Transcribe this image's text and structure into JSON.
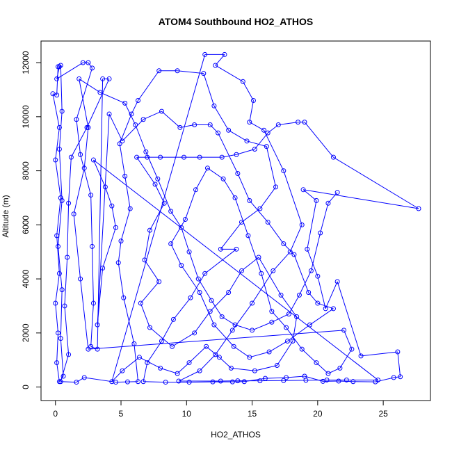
{
  "chart_data": {
    "type": "scatter",
    "title": "ATOM4 Southbound HO2_ATHOS",
    "xlabel": "HO2_ATHOS",
    "ylabel": "Altitude (m)",
    "xlim": [
      -1.1,
      28.6
    ],
    "ylim": [
      -500,
      12800
    ],
    "x_ticks": [
      0,
      5,
      10,
      15,
      20,
      25
    ],
    "y_ticks": [
      0,
      2000,
      4000,
      6000,
      8000,
      10000,
      12000
    ],
    "color": "#0000ff",
    "marker": "open-circle",
    "connected": true,
    "grid": false,
    "series": [
      {
        "points": [
          [
            0.2,
            11850
          ],
          [
            0.1,
            10800
          ],
          [
            -0.2,
            10850
          ],
          [
            0.3,
            9600
          ],
          [
            0.0,
            8400
          ],
          [
            0.4,
            7000
          ],
          [
            0.1,
            5600
          ],
          [
            0.3,
            4200
          ],
          [
            0.0,
            3100
          ],
          [
            0.2,
            2000
          ],
          [
            0.1,
            900
          ],
          [
            0.3,
            200
          ],
          [
            0.6,
            400
          ],
          [
            0.4,
            1800
          ],
          [
            0.5,
            3600
          ],
          [
            0.2,
            5200
          ],
          [
            0.5,
            6900
          ],
          [
            0.3,
            8800
          ],
          [
            0.5,
            10200
          ],
          [
            0.4,
            11900
          ],
          [
            0.3,
            11850
          ],
          [
            0.1,
            11400
          ],
          [
            2.1,
            12000
          ],
          [
            2.5,
            12000
          ],
          [
            2.8,
            11800
          ],
          [
            1.6,
            9900
          ],
          [
            1.9,
            8600
          ],
          [
            2.7,
            7100
          ],
          [
            2.8,
            5200
          ],
          [
            2.9,
            3100
          ],
          [
            2.7,
            1500
          ],
          [
            3.2,
            1400
          ],
          [
            3.6,
            11400
          ],
          [
            4.1,
            11400
          ],
          [
            2.4,
            9600
          ],
          [
            1.2,
            8500
          ],
          [
            1.0,
            6800
          ],
          [
            0.9,
            4800
          ],
          [
            0.7,
            3000
          ],
          [
            1.0,
            1200
          ],
          [
            0.4,
            200
          ],
          [
            1.6,
            180
          ],
          [
            2.2,
            350
          ],
          [
            4.6,
            180
          ],
          [
            5.5,
            190
          ],
          [
            6.3,
            200
          ],
          [
            6.0,
            1600
          ],
          [
            5.2,
            3300
          ],
          [
            4.8,
            4600
          ],
          [
            5.0,
            5400
          ],
          [
            5.7,
            6600
          ],
          [
            5.3,
            7800
          ],
          [
            4.9,
            9000
          ],
          [
            5.8,
            10100
          ],
          [
            6.3,
            10600
          ],
          [
            7.9,
            11700
          ],
          [
            9.3,
            11700
          ],
          [
            11.3,
            11600
          ],
          [
            12.1,
            10400
          ],
          [
            13.2,
            9500
          ],
          [
            14.6,
            9100
          ],
          [
            16.1,
            8900
          ],
          [
            16.8,
            7400
          ],
          [
            15.6,
            6600
          ],
          [
            14.2,
            6100
          ],
          [
            12.6,
            5100
          ],
          [
            13.8,
            5100
          ],
          [
            11.4,
            4200
          ],
          [
            10.3,
            3300
          ],
          [
            9.0,
            2500
          ],
          [
            8.1,
            1700
          ],
          [
            7.0,
            900
          ],
          [
            6.7,
            200
          ],
          [
            8.4,
            180
          ],
          [
            10.2,
            180
          ],
          [
            12.0,
            190
          ],
          [
            13.5,
            190
          ],
          [
            14.4,
            200
          ],
          [
            16.0,
            320
          ],
          [
            17.6,
            350
          ],
          [
            19.0,
            400
          ],
          [
            20.4,
            210
          ],
          [
            21.6,
            220
          ],
          [
            22.7,
            200
          ],
          [
            24.4,
            190
          ],
          [
            25.8,
            350
          ],
          [
            26.3,
            380
          ],
          [
            26.1,
            1300
          ],
          [
            23.3,
            1150
          ],
          [
            21.5,
            3900
          ],
          [
            20.6,
            2900
          ],
          [
            20.0,
            4100
          ],
          [
            19.2,
            5100
          ],
          [
            19.9,
            6900
          ],
          [
            18.9,
            7300
          ],
          [
            27.7,
            6600
          ],
          [
            21.2,
            8500
          ],
          [
            19.0,
            9800
          ],
          [
            18.5,
            9800
          ],
          [
            17.0,
            9700
          ],
          [
            16.2,
            9400
          ],
          [
            15.2,
            8800
          ],
          [
            13.8,
            8600
          ],
          [
            12.7,
            8500
          ],
          [
            11.0,
            8500
          ],
          [
            9.8,
            8500
          ],
          [
            8.0,
            8500
          ],
          [
            7.0,
            8500
          ],
          [
            6.2,
            8500
          ],
          [
            7.6,
            7500
          ],
          [
            8.3,
            6800
          ],
          [
            7.2,
            5800
          ],
          [
            6.8,
            4700
          ],
          [
            7.9,
            3900
          ],
          [
            6.5,
            3100
          ],
          [
            7.2,
            2200
          ],
          [
            8.9,
            1500
          ],
          [
            10.6,
            2000
          ],
          [
            11.8,
            2800
          ],
          [
            13.2,
            3500
          ],
          [
            14.2,
            4300
          ],
          [
            15.5,
            4800
          ],
          [
            17.2,
            3400
          ],
          [
            18.4,
            2600
          ],
          [
            18.1,
            1700
          ],
          [
            16.9,
            800
          ],
          [
            15.2,
            600
          ],
          [
            13.4,
            700
          ],
          [
            12.5,
            1100
          ],
          [
            11.5,
            1500
          ],
          [
            10.2,
            900
          ],
          [
            9.3,
            500
          ],
          [
            8.0,
            700
          ],
          [
            6.4,
            1100
          ],
          [
            5.1,
            600
          ],
          [
            4.3,
            200
          ],
          [
            11.4,
            12300
          ],
          [
            12.9,
            12300
          ],
          [
            12.2,
            11900
          ],
          [
            14.3,
            11300
          ],
          [
            15.1,
            10600
          ],
          [
            14.8,
            9800
          ],
          [
            15.9,
            9500
          ],
          [
            17.4,
            8000
          ],
          [
            18.8,
            6000
          ],
          [
            17.9,
            5000
          ],
          [
            16.6,
            4300
          ],
          [
            15.0,
            3100
          ],
          [
            13.5,
            2100
          ],
          [
            12.2,
            1200
          ],
          [
            11.0,
            600
          ],
          [
            9.4,
            220
          ],
          [
            12.6,
            220
          ],
          [
            13.9,
            230
          ],
          [
            15.6,
            230
          ],
          [
            17.4,
            240
          ],
          [
            19.1,
            250
          ],
          [
            20.7,
            260
          ],
          [
            22.2,
            260
          ],
          [
            24.6,
            260
          ],
          [
            2.9,
            8400
          ],
          [
            3.8,
            7400
          ],
          [
            4.3,
            6700
          ],
          [
            4.6,
            5900
          ],
          [
            3.6,
            4400
          ],
          [
            3.2,
            2300
          ],
          [
            4.1,
            10100
          ],
          [
            5.1,
            9100
          ],
          [
            6.7,
            9900
          ],
          [
            8.1,
            10200
          ],
          [
            9.5,
            9600
          ],
          [
            10.6,
            9700
          ],
          [
            11.8,
            9700
          ],
          [
            12.4,
            9400
          ],
          [
            13.9,
            7900
          ],
          [
            14.8,
            6900
          ],
          [
            16.2,
            6100
          ],
          [
            17.4,
            5300
          ],
          [
            18.2,
            4900
          ],
          [
            19.3,
            3500
          ],
          [
            20.0,
            3100
          ],
          [
            21.2,
            2900
          ],
          [
            19.4,
            2300
          ],
          [
            17.7,
            1700
          ],
          [
            16.3,
            1300
          ],
          [
            14.8,
            1100
          ],
          [
            13.6,
            1500
          ],
          [
            12.1,
            2300
          ],
          [
            11.0,
            3500
          ],
          [
            9.6,
            4500
          ],
          [
            8.8,
            5300
          ],
          [
            9.9,
            6200
          ],
          [
            10.7,
            7300
          ],
          [
            11.6,
            8100
          ],
          [
            12.8,
            7700
          ],
          [
            13.7,
            7000
          ],
          [
            14.7,
            5600
          ],
          [
            15.7,
            4200
          ],
          [
            16.5,
            2800
          ],
          [
            17.6,
            2200
          ],
          [
            18.8,
            1400
          ],
          [
            19.9,
            900
          ],
          [
            20.8,
            500
          ],
          [
            21.7,
            700
          ],
          [
            22.6,
            1400
          ],
          [
            22.0,
            2100
          ],
          [
            2.5,
            1400
          ],
          [
            1.9,
            4000
          ],
          [
            1.4,
            6400
          ],
          [
            2.2,
            8100
          ],
          [
            2.5,
            9600
          ],
          [
            1.8,
            11400
          ],
          [
            3.4,
            10900
          ],
          [
            5.3,
            10500
          ],
          [
            6.1,
            9700
          ],
          [
            6.9,
            8700
          ],
          [
            7.8,
            7700
          ],
          [
            8.8,
            6500
          ],
          [
            9.6,
            5900
          ],
          [
            10.2,
            5000
          ],
          [
            10.9,
            4000
          ],
          [
            11.9,
            3200
          ],
          [
            12.7,
            2600
          ],
          [
            13.7,
            2300
          ],
          [
            15.0,
            2100
          ],
          [
            16.5,
            2400
          ],
          [
            17.8,
            2700
          ],
          [
            18.6,
            3400
          ],
          [
            19.5,
            4300
          ],
          [
            20.2,
            5700
          ],
          [
            20.8,
            6800
          ],
          [
            21.5,
            7200
          ]
        ]
      }
    ]
  }
}
